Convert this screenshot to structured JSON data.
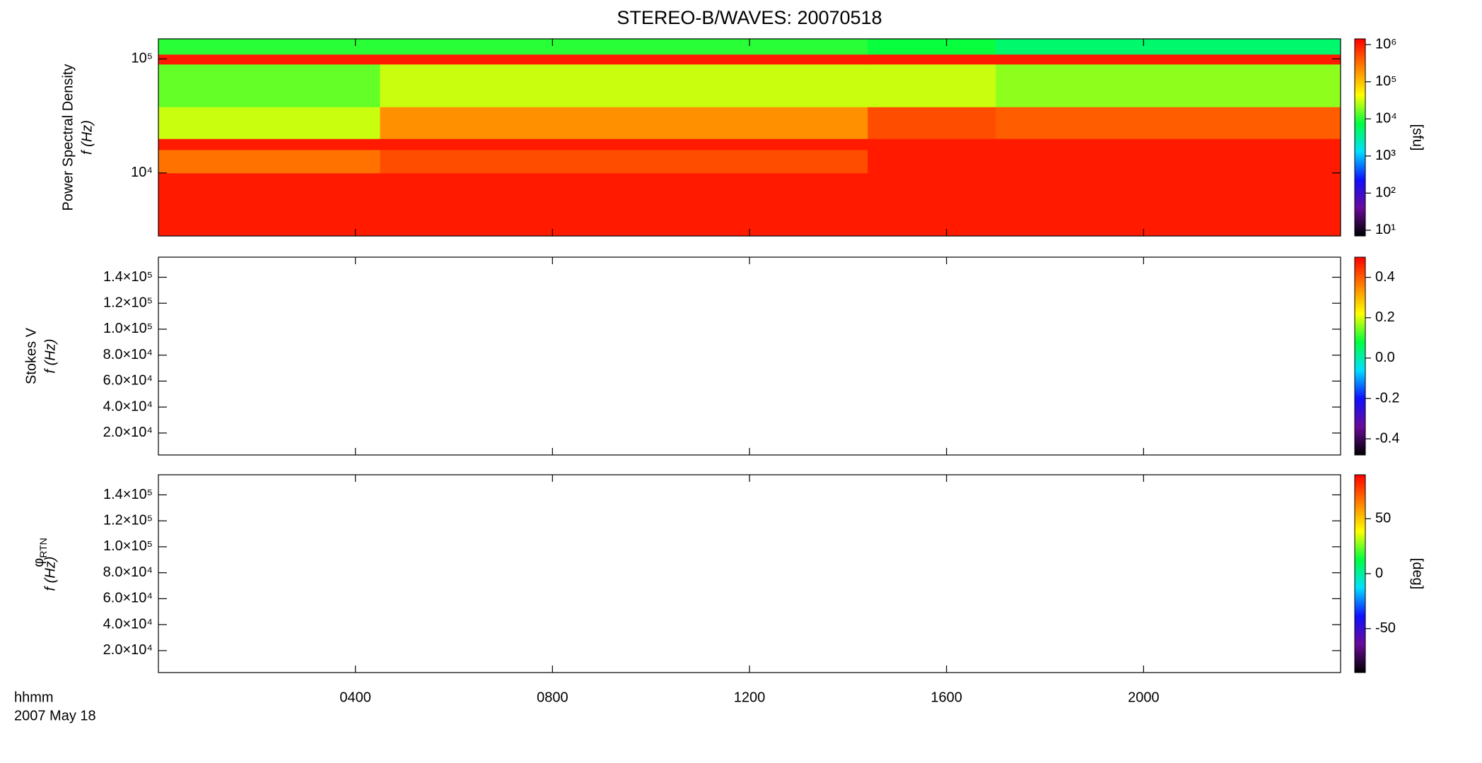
{
  "chart_data": [
    {
      "type": "heatmap",
      "title": "STEREO-B/WAVES: 20070518",
      "quantity": "Power Spectral Density",
      "ylabel": "f (Hz)",
      "xlim": [
        0,
        24
      ],
      "xticks": [
        {
          "value": 4,
          "label": "0400"
        },
        {
          "value": 8,
          "label": "0800"
        },
        {
          "value": 12,
          "label": "1200"
        },
        {
          "value": 16,
          "label": "1600"
        },
        {
          "value": 20,
          "label": "2000"
        }
      ],
      "ylim": [
        2800,
        150000
      ],
      "ylog": true,
      "yticks": [
        {
          "value": 10000,
          "label": "10⁴"
        },
        {
          "value": 100000,
          "label": "10⁵"
        }
      ],
      "x_edges": [
        0,
        4.5,
        14.4,
        17,
        24
      ],
      "y_edges": [
        2800,
        10000,
        16000,
        20000,
        38000,
        90000,
        110000,
        150000
      ],
      "z": [
        [
          1000000,
          1000000,
          1000000,
          1000000
        ],
        [
          300000,
          500000,
          1000000,
          1000000
        ],
        [
          1000000,
          1000000,
          1000000,
          1000000
        ],
        [
          30000,
          200000,
          500000,
          400000
        ],
        [
          15000,
          30000,
          30000,
          20000
        ],
        [
          1000000,
          1000000,
          1000000,
          1000000
        ],
        [
          10000,
          10000,
          8000,
          5000
        ]
      ],
      "colors": [
        "#000000",
        "#6a0a9a",
        "#1010ff",
        "#00e0ff",
        "#00ff40",
        "#ffff00",
        "#ff8000",
        "#ff0000"
      ],
      "colorbar": {
        "lim": [
          7,
          1430000
        ],
        "log": true,
        "label": "[sfu]",
        "ticks": [
          {
            "value": 10,
            "label": "10¹"
          },
          {
            "value": 100,
            "label": "10²"
          },
          {
            "value": 1000,
            "label": "10³"
          },
          {
            "value": 10000,
            "label": "10⁴"
          },
          {
            "value": 100000,
            "label": "10⁵"
          },
          {
            "value": 1000000,
            "label": "10⁶"
          }
        ]
      }
    },
    {
      "type": "heatmap",
      "quantity": "Stokes V",
      "ylabel": "f (Hz)",
      "xlim": [
        0,
        24
      ],
      "xticks": [
        {
          "value": 4,
          "label": "0400"
        },
        {
          "value": 8,
          "label": "0800"
        },
        {
          "value": 12,
          "label": "1200"
        },
        {
          "value": 16,
          "label": "1600"
        },
        {
          "value": 20,
          "label": "2000"
        }
      ],
      "ylim": [
        3070,
        155500
      ],
      "yticks": [
        {
          "value": 20000,
          "label": "2.0×10⁴"
        },
        {
          "value": 40000,
          "label": "4.0×10⁴"
        },
        {
          "value": 60000,
          "label": "6.0×10⁴"
        },
        {
          "value": 80000,
          "label": "8.0×10⁴"
        },
        {
          "value": 100000,
          "label": "1.0×10⁵"
        },
        {
          "value": 120000,
          "label": "1.2×10⁵"
        },
        {
          "value": 140000,
          "label": "1.4×10⁵"
        }
      ],
      "colors": [
        "#000000",
        "#6a0a9a",
        "#1010ff",
        "#00e0ff",
        "#00ff40",
        "#ffff00",
        "#ff8000",
        "#ff0000"
      ],
      "colorbar": {
        "lim": [
          -0.48,
          0.5
        ],
        "ticks": [
          -0.4,
          -0.2,
          {
            "value": 0,
            "label": "0.0"
          },
          0.2,
          0.4
        ]
      }
    },
    {
      "type": "heatmap",
      "quantity": "φ",
      "quantity_subscript": "RTN",
      "ylabel": "f (Hz)",
      "xlim": [
        0,
        24
      ],
      "xticks": [
        {
          "value": 4,
          "label": "0400"
        },
        {
          "value": 8,
          "label": "0800"
        },
        {
          "value": 12,
          "label": "1200"
        },
        {
          "value": 16,
          "label": "1600"
        },
        {
          "value": 20,
          "label": "2000"
        }
      ],
      "ylim": [
        3070,
        155500
      ],
      "yticks": [
        {
          "value": 20000,
          "label": "2.0×10⁴"
        },
        {
          "value": 40000,
          "label": "4.0×10⁴"
        },
        {
          "value": 60000,
          "label": "6.0×10⁴"
        },
        {
          "value": 80000,
          "label": "8.0×10⁴"
        },
        {
          "value": 100000,
          "label": "1.0×10⁵"
        },
        {
          "value": 120000,
          "label": "1.2×10⁵"
        },
        {
          "value": 140000,
          "label": "1.4×10⁵"
        }
      ],
      "colors": [
        "#000000",
        "#6a0a9a",
        "#1010ff",
        "#00e0ff",
        "#00ff40",
        "#ffff00",
        "#ff8000",
        "#ff0000"
      ],
      "colorbar": {
        "lim": [
          -90,
          90
        ],
        "label": "[deg]",
        "ticks": [
          -50,
          0,
          50
        ]
      },
      "xlabel": "hhmm",
      "date": "2007 May 18"
    }
  ]
}
